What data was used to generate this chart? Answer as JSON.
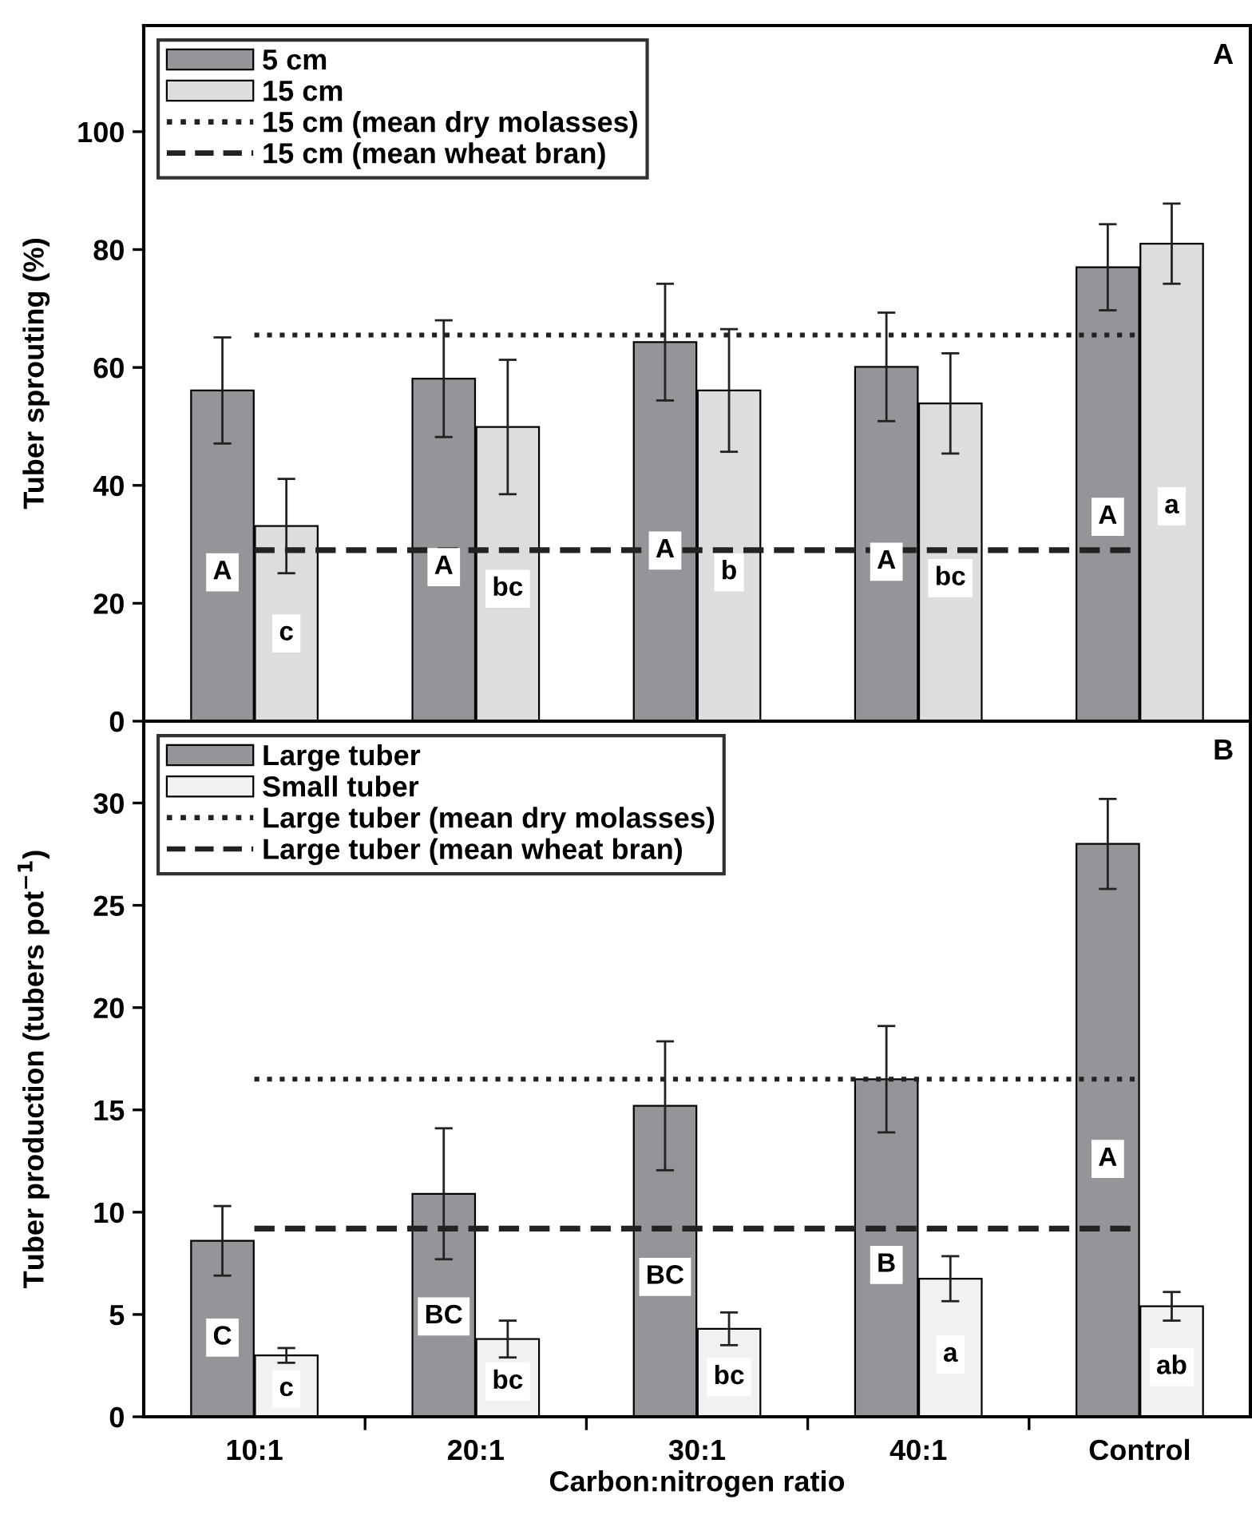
{
  "chart_data": [
    {
      "type": "bar",
      "title": "A",
      "ylabel": "Tuber sprouting (%)",
      "categories": [
        null,
        null,
        null,
        null,
        null
      ],
      "ylim": [
        0,
        118
      ],
      "yticks": [
        0,
        20,
        40,
        60,
        80,
        100
      ],
      "tick_labels": "y",
      "legend": "top left",
      "grid": false,
      "series": [
        {
          "name": "5 cm",
          "color": "#939598",
          "values": [
            56.1,
            58.1,
            64.3,
            60.1,
            77
          ],
          "errors": [
            9,
            9.9,
            9.9,
            9.2,
            7.3
          ],
          "value_labels": [
            "A",
            "A",
            "A",
            "A",
            "A"
          ]
        },
        {
          "name": "15 cm",
          "color": "#dcdddf",
          "values": [
            33.1,
            49.9,
            56.1,
            53.9,
            81
          ],
          "errors": [
            8,
            11.4,
            10.4,
            8.5,
            6.8
          ],
          "value_labels": [
            "c",
            "bc",
            "b",
            "bc",
            "a"
          ]
        }
      ],
      "ref_lines": [
        {
          "axis": "y",
          "value": 65.5,
          "label": "15 cm (mean dry molasses)",
          "line_style": "dotted"
        },
        {
          "axis": "y",
          "value": 29,
          "label": "15 cm (mean wheat bran)",
          "line_style": "dashed"
        }
      ]
    },
    {
      "type": "bar",
      "title": "B",
      "ylabel": "Tuber production (tubers pot$^{−1}$)",
      "xlabel": "Carbon:nitrogen ratio",
      "categories": [
        "10:1",
        "20:1",
        "30:1",
        "40:1",
        "Control"
      ],
      "ylim": [
        0,
        34
      ],
      "yticks": [
        0,
        5,
        10,
        15,
        20,
        25,
        30
      ],
      "legend": "top left",
      "grid": false,
      "series": [
        {
          "name": "Large tuber",
          "color": "#939598",
          "values": [
            8.6,
            10.9,
            15.2,
            16.5,
            28.0
          ],
          "errors": [
            1.7,
            3.2,
            3.15,
            2.6,
            2.2
          ],
          "value_labels": [
            "C",
            "BC",
            "BC",
            "B",
            "A"
          ]
        },
        {
          "name": "Small tuber",
          "color": "#f0f1f2",
          "values": [
            3.0,
            3.8,
            4.3,
            6.75,
            5.4
          ],
          "errors": [
            0.36,
            0.9,
            0.8,
            1.1,
            0.7
          ],
          "value_labels": [
            "c",
            "bc",
            "bc",
            "a",
            "ab"
          ]
        }
      ],
      "ref_lines": [
        {
          "axis": "y",
          "value": 16.5,
          "label": "Large tuber (mean dry molasses)",
          "line_style": "dotted"
        },
        {
          "axis": "y",
          "value": 9.2,
          "label": "Large tuber (mean wheat bran)",
          "line_style": "dashed"
        }
      ]
    }
  ]
}
